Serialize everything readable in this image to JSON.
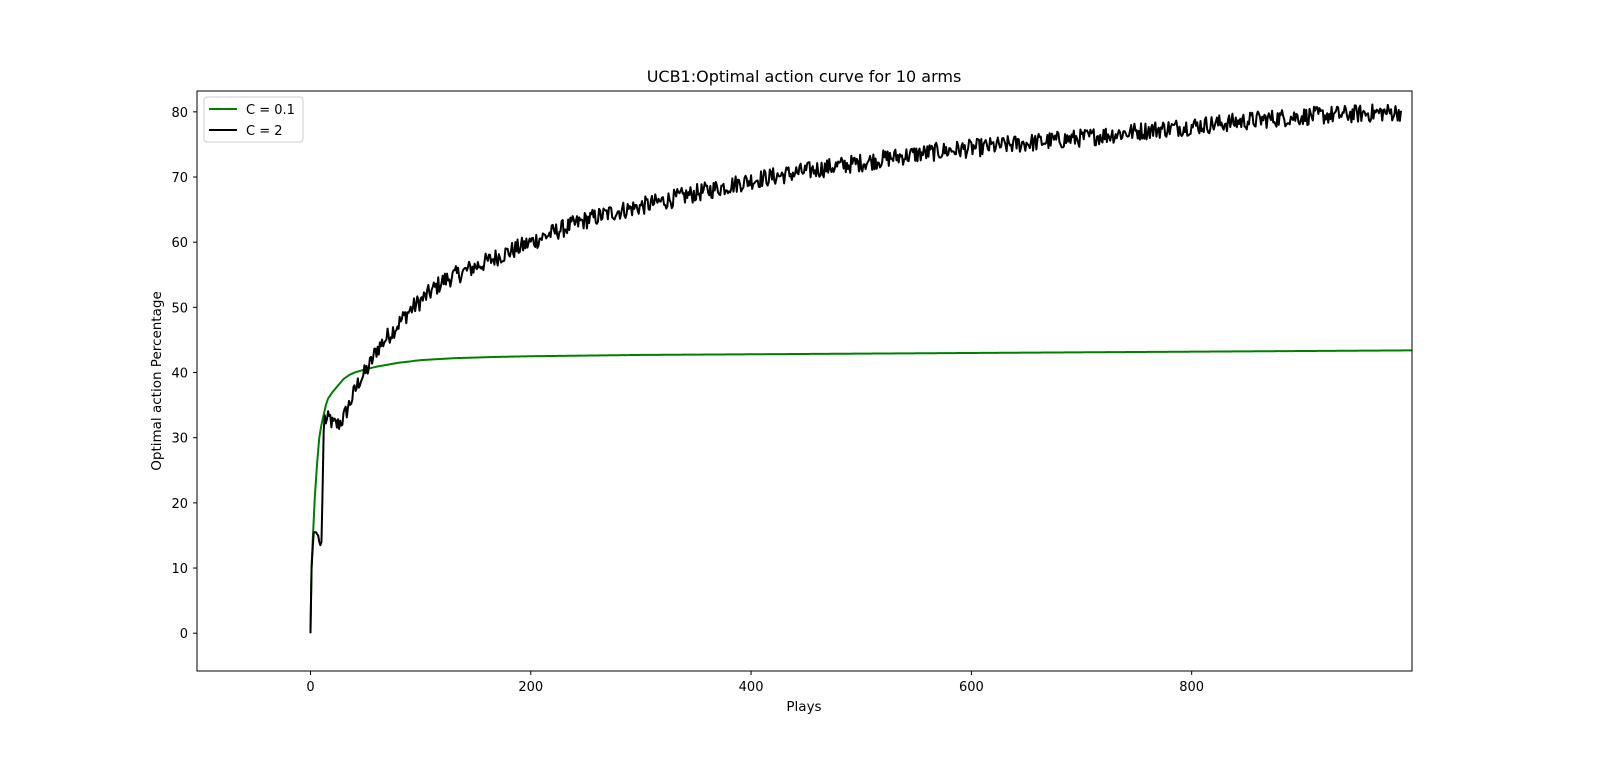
{
  "chart_data": {
    "type": "line",
    "title": "UCB1:Optimal action curve for 10 arms",
    "xlabel": "Plays",
    "ylabel": "Optimal action Percentage",
    "xlim": [
      -103,
      1000
    ],
    "ylim": [
      -5.8,
      83.2
    ],
    "xticks": [
      0,
      200,
      400,
      600,
      800
    ],
    "yticks": [
      0,
      10,
      20,
      30,
      40,
      50,
      60,
      70,
      80
    ],
    "grid": false,
    "legend_position": "top-left",
    "series": [
      {
        "name": "C = 0.1",
        "color": "#008000",
        "noise": 0,
        "x": [
          0,
          1,
          2,
          4,
          6,
          8,
          10,
          12,
          14,
          16,
          20,
          25,
          30,
          35,
          40,
          50,
          60,
          70,
          80,
          100,
          130,
          170,
          200,
          250,
          300,
          350,
          400,
          500,
          600,
          700,
          800,
          900,
          1000
        ],
        "y": [
          0,
          10,
          14,
          21,
          26,
          30,
          32,
          33.5,
          35,
          36,
          37,
          38,
          39,
          39.6,
          40,
          40.5,
          40.9,
          41.2,
          41.5,
          41.9,
          42.2,
          42.4,
          42.5,
          42.6,
          42.7,
          42.75,
          42.8,
          42.9,
          43,
          43.1,
          43.2,
          43.3,
          43.4
        ]
      },
      {
        "name": "C = 2",
        "color": "#000000",
        "noise": 1.4,
        "x": [
          0,
          1,
          2,
          3,
          4,
          5,
          6,
          7,
          8,
          9,
          10,
          11,
          12,
          13,
          15,
          18,
          20,
          25,
          30,
          35,
          40,
          45,
          50,
          55,
          60,
          70,
          80,
          90,
          100,
          110,
          120,
          130,
          140,
          150,
          160,
          170,
          180,
          190,
          200,
          225,
          250,
          275,
          300,
          325,
          350,
          375,
          400,
          425,
          450,
          475,
          500,
          525,
          550,
          575,
          600,
          625,
          650,
          675,
          700,
          725,
          750,
          775,
          800,
          825,
          850,
          875,
          900,
          925,
          950,
          975,
          990
        ],
        "y": [
          0,
          10,
          13,
          15.5,
          15.5,
          15.5,
          15.2,
          15,
          14,
          13.5,
          14,
          22,
          31,
          33,
          32.5,
          33,
          32,
          32,
          33,
          35,
          37,
          39,
          40,
          41.5,
          43.5,
          45.5,
          47.5,
          49.5,
          51,
          52.5,
          54,
          54.8,
          55.5,
          56.3,
          57,
          57.8,
          58.5,
          59.2,
          60,
          61.8,
          63.4,
          64.6,
          65.5,
          66.5,
          67.5,
          68.5,
          69.5,
          70.2,
          70.9,
          71.6,
          72.2,
          72.9,
          73.5,
          74,
          74.4,
          74.8,
          75.2,
          75.6,
          76,
          76.5,
          77,
          77.4,
          77.8,
          78.2,
          78.6,
          79,
          79.3,
          79.5,
          79.7,
          79.9,
          80
        ]
      }
    ]
  }
}
